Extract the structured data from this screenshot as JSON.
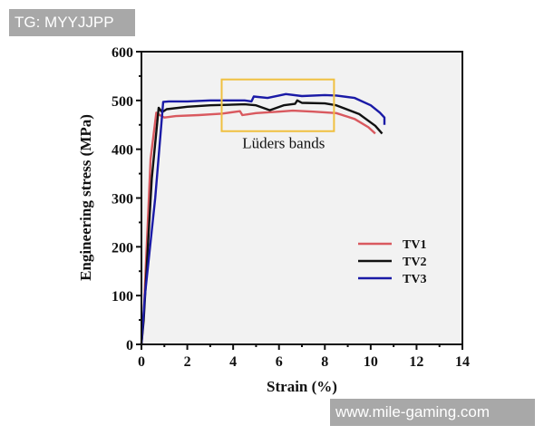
{
  "watermarks": {
    "top": "TG: MYYJJPP",
    "bottom": "www.mile-gaming.com"
  },
  "colors": {
    "plot_bg": "#f2f2f2",
    "axis": "#111111",
    "tv1": "#d9595f",
    "tv2": "#111111",
    "tv3": "#1a1aa6",
    "highlight_box": "#f0c040",
    "watermark_bg": "#a8a8a8"
  },
  "chart_data": {
    "type": "line",
    "title": "",
    "xlabel": "Strain (%)",
    "ylabel": "Engineering stress (MPa)",
    "xlim": [
      0,
      14
    ],
    "ylim": [
      0,
      600
    ],
    "xticks": [
      "0",
      "2",
      "4",
      "6",
      "8",
      "10",
      "12",
      "14"
    ],
    "yticks": [
      "0",
      "100",
      "200",
      "300",
      "400",
      "500",
      "600"
    ],
    "grid": false,
    "legend_position": "right-middle",
    "annotations": [
      {
        "type": "rectangle",
        "x_range": [
          3.5,
          8.4
        ],
        "y_range": [
          437,
          543
        ],
        "label": "Lüders bands",
        "label_pos": [
          6.2,
          402
        ]
      }
    ],
    "series": [
      {
        "name": "TV1",
        "x": [
          0,
          0.1,
          0.4,
          0.65,
          0.8,
          1.0,
          1.5,
          2.5,
          3.5,
          4.3,
          4.4,
          5.0,
          6.0,
          6.6,
          7.5,
          8.5,
          9.3,
          9.9,
          10.2
        ],
        "y": [
          0,
          60,
          380,
          475,
          470,
          465,
          468,
          470,
          473,
          478,
          470,
          474,
          477,
          479,
          477,
          474,
          462,
          445,
          432
        ]
      },
      {
        "name": "TV2",
        "x": [
          0,
          0.1,
          0.45,
          0.75,
          0.9,
          1.1,
          2.0,
          3.0,
          4.5,
          5.0,
          5.6,
          6.2,
          6.7,
          6.8,
          7.0,
          8.0,
          8.5,
          9.5,
          10.2,
          10.5
        ],
        "y": [
          0,
          50,
          340,
          485,
          476,
          482,
          487,
          490,
          492,
          490,
          480,
          490,
          493,
          500,
          495,
          494,
          490,
          472,
          448,
          432
        ]
      },
      {
        "name": "TV3",
        "x": [
          0,
          0.15,
          0.6,
          0.95,
          1.2,
          2.0,
          3.0,
          4.5,
          4.8,
          4.9,
          5.5,
          6.0,
          6.3,
          7.0,
          8.0,
          8.5,
          9.3,
          10.0,
          10.4,
          10.6,
          10.6
        ],
        "y": [
          0,
          100,
          300,
          497,
          498,
          498,
          500,
          500,
          498,
          508,
          505,
          510,
          513,
          509,
          511,
          510,
          505,
          490,
          475,
          465,
          450
        ]
      }
    ]
  }
}
